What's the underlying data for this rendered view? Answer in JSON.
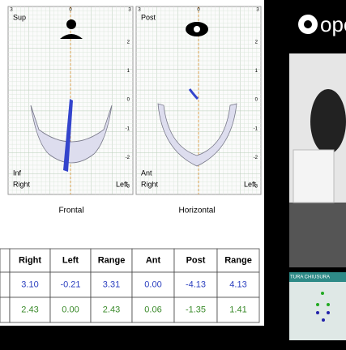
{
  "logo": "ope",
  "frontal": {
    "corner_top": "Sup",
    "corner_bottom": "Inf",
    "right": "Right",
    "left": "Left",
    "caption": "Frontal",
    "yticks": [
      "2",
      "1",
      "0",
      "-1",
      "-2",
      "-3"
    ],
    "top_ticks": [
      "3",
      "0",
      "3"
    ]
  },
  "horizontal": {
    "corner_top": "Post",
    "corner_bottom": "Ant",
    "right": "Right",
    "left": "Left",
    "caption": "Horizontal",
    "yticks": [
      "2",
      "1",
      "0",
      "-1",
      "-2",
      "-3"
    ],
    "top_ticks": [
      "3",
      "0",
      "3"
    ]
  },
  "table": {
    "header": [
      "Right",
      "Left",
      "Range",
      "Ant",
      "Post",
      "Range"
    ],
    "rows": [
      [
        "3.10",
        "-0.21",
        "3.31",
        "0.00",
        "-4.13",
        "4.13"
      ],
      [
        "2.43",
        "0.00",
        "2.43",
        "0.06",
        "-1.35",
        "1.41"
      ]
    ]
  },
  "panel_title": "TURA CHIUSURA"
}
